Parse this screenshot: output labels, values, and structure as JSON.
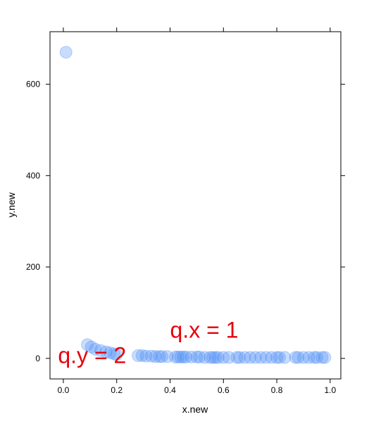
{
  "chart_data": {
    "type": "scatter",
    "xlabel": "x.new",
    "ylabel": "y.new",
    "xlim": [
      -0.05,
      1.04
    ],
    "ylim": [
      -45,
      715
    ],
    "xticks": [
      0.0,
      0.2,
      0.4,
      0.6,
      0.8,
      1.0
    ],
    "xtick_labels": [
      "0.0",
      "0.2",
      "0.4",
      "0.6",
      "0.8",
      "1.0"
    ],
    "yticks": [
      0,
      200,
      400,
      600
    ],
    "ytick_labels": [
      "0",
      "200",
      "400",
      "600"
    ],
    "point_color": "#4a8cf5",
    "annotation_color": "#e8000b",
    "annotations": [
      {
        "text": "q.x = 1",
        "x": 0.4,
        "y": 45
      },
      {
        "text": "q.y = 2",
        "x": -0.02,
        "y": -10
      }
    ],
    "series": [
      {
        "x": [
          0.01,
          0.09,
          0.105,
          0.12,
          0.14,
          0.16,
          0.175,
          0.19,
          0.2,
          0.28,
          0.295,
          0.31,
          0.33,
          0.345,
          0.36,
          0.37,
          0.39,
          0.42,
          0.43,
          0.44,
          0.45,
          0.46,
          0.48,
          0.5,
          0.51,
          0.53,
          0.55,
          0.56,
          0.57,
          0.58,
          0.6,
          0.62,
          0.65,
          0.66,
          0.68,
          0.7,
          0.72,
          0.74,
          0.76,
          0.78,
          0.8,
          0.81,
          0.83,
          0.87,
          0.88,
          0.9,
          0.92,
          0.94,
          0.95,
          0.97,
          0.98
        ],
        "y": [
          670,
          30,
          25,
          20,
          17,
          14,
          12,
          10,
          8,
          6,
          6,
          5,
          5,
          4,
          4,
          4,
          4,
          3,
          3,
          3,
          3,
          3,
          3,
          3,
          3,
          2,
          2,
          2,
          2,
          2,
          2,
          2,
          2,
          2,
          2,
          2,
          2,
          2,
          2,
          2,
          2,
          2,
          2,
          2,
          2,
          2,
          2,
          2,
          2,
          2,
          2
        ]
      }
    ]
  }
}
